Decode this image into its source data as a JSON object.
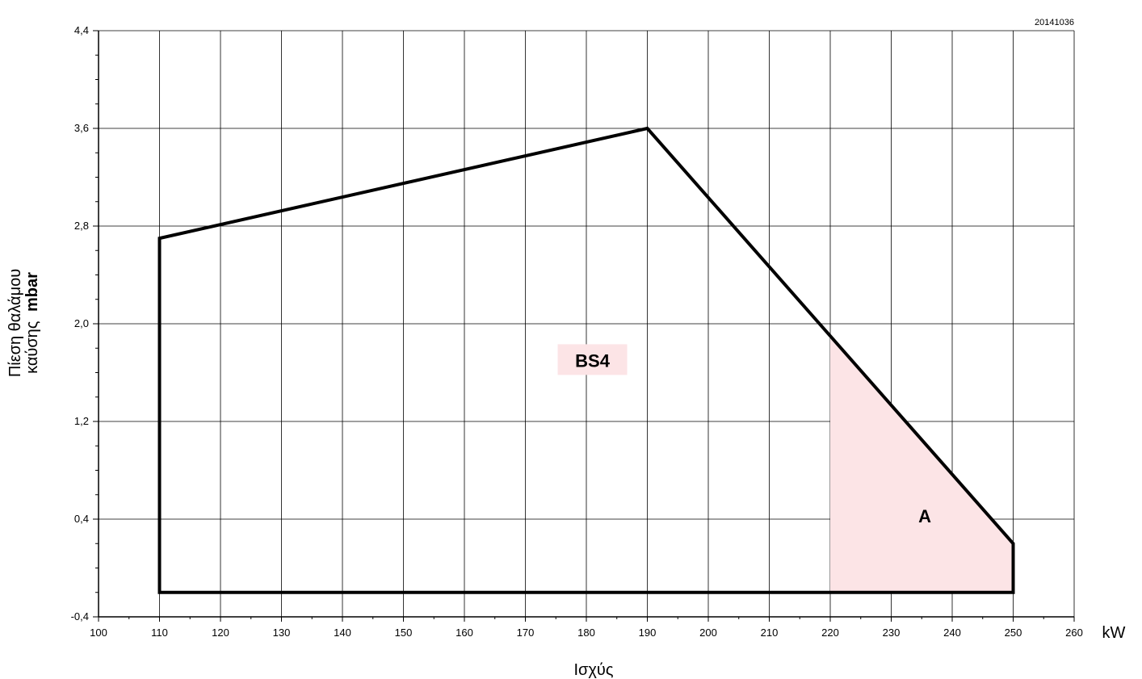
{
  "document_code": "20141036",
  "chart_data": {
    "type": "area",
    "title": "",
    "xlabel": "Ισχύς",
    "xunit": "kW",
    "ylabel_line1": "Πίεση θαλάμου",
    "ylabel_line2": "καύσης",
    "ylabel_unit": "mbar",
    "xlim": [
      100,
      260
    ],
    "ylim": [
      -0.4,
      4.4
    ],
    "x_ticks": [
      "100",
      "110",
      "120",
      "130",
      "140",
      "150",
      "160",
      "170",
      "180",
      "190",
      "200",
      "210",
      "220",
      "230",
      "240",
      "250",
      "260"
    ],
    "y_ticks": [
      "-0,4",
      "0,4",
      "1,2",
      "2,0",
      "2,8",
      "3,6",
      "4,4"
    ],
    "grid": true,
    "colors": {
      "highlight": "#fce4e6",
      "outline": "#000000"
    },
    "series": [
      {
        "name": "BS4",
        "outline": [
          [
            110,
            -0.2
          ],
          [
            110,
            2.7
          ],
          [
            190,
            3.6
          ],
          [
            250,
            0.2
          ],
          [
            250,
            -0.2
          ]
        ]
      },
      {
        "name": "A",
        "region": [
          [
            220,
            -0.2
          ],
          [
            220,
            1.9
          ],
          [
            250,
            0.2
          ],
          [
            250,
            -0.2
          ]
        ]
      }
    ]
  }
}
